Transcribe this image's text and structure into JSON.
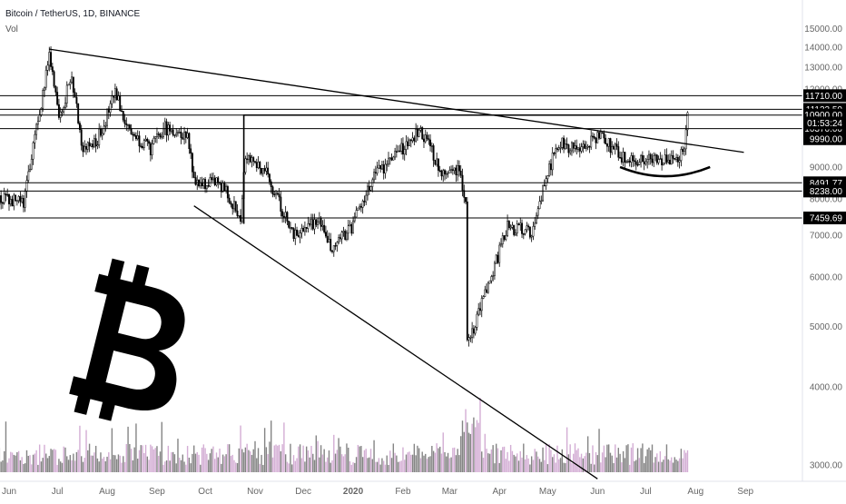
{
  "header": {
    "title": "Bitcoin / TetherUS, 1D, BINANCE",
    "volume_label": "Vol"
  },
  "colors": {
    "up": "#ffffff",
    "down": "#000000",
    "wick": "#000000",
    "volume": "#cea4cf",
    "volume_dark": "#777777",
    "line": "#000000",
    "label_bg": "#000000",
    "label_text": "#ffffff",
    "axis_text": "#666666"
  },
  "chart_data": {
    "type": "candlestick",
    "symbol": "Bitcoin / TetherUS",
    "interval": "1D",
    "exchange": "BINANCE",
    "log_scale": true,
    "ylim": [
      2800,
      15600
    ],
    "y_ticks": [
      3000,
      4000,
      5000,
      6000,
      7000,
      8000,
      9000,
      10000,
      11000,
      12000,
      13000,
      14000,
      15000
    ],
    "y_tick_labels": [
      "3000.00",
      "4000.00",
      "5000.00",
      "6000.00",
      "7000.00",
      "8000.00",
      "9000.00",
      "10000.00",
      "11000.00",
      "12000.00",
      "13000.00",
      "14000.00",
      "15000.00"
    ],
    "x_labels": [
      "Jun",
      "Jul",
      "Aug",
      "Sep",
      "Oct",
      "Nov",
      "Dec",
      "2020",
      "Feb",
      "Mar",
      "Apr",
      "May",
      "Jun",
      "Jul",
      "Aug",
      "Sep"
    ],
    "x_label_dates": [
      "2019-06-01",
      "2019-07-01",
      "2019-08-01",
      "2019-09-01",
      "2019-10-01",
      "2019-11-01",
      "2019-12-01",
      "2020-01-01",
      "2020-02-01",
      "2020-03-01",
      "2020-04-01",
      "2020-05-01",
      "2020-06-01",
      "2020-07-01",
      "2020-08-01",
      "2020-09-01"
    ],
    "price_key_points": [
      {
        "date": "2019-05-25",
        "close": 8000
      },
      {
        "date": "2019-06-10",
        "close": 7900
      },
      {
        "date": "2019-06-26",
        "close": 13500
      },
      {
        "date": "2019-07-02",
        "close": 10800
      },
      {
        "date": "2019-07-10",
        "close": 12600
      },
      {
        "date": "2019-07-17",
        "close": 9600
      },
      {
        "date": "2019-07-25",
        "close": 9800
      },
      {
        "date": "2019-08-06",
        "close": 11800
      },
      {
        "date": "2019-08-15",
        "close": 10300
      },
      {
        "date": "2019-08-28",
        "close": 9600
      },
      {
        "date": "2019-09-06",
        "close": 10400
      },
      {
        "date": "2019-09-20",
        "close": 10100
      },
      {
        "date": "2019-09-25",
        "close": 8400
      },
      {
        "date": "2019-10-10",
        "close": 8500
      },
      {
        "date": "2019-10-23",
        "close": 7500
      },
      {
        "date": "2019-10-26",
        "close": 9500
      },
      {
        "date": "2019-11-08",
        "close": 8800
      },
      {
        "date": "2019-11-25",
        "close": 7000
      },
      {
        "date": "2019-12-10",
        "close": 7400
      },
      {
        "date": "2019-12-18",
        "close": 6700
      },
      {
        "date": "2019-12-31",
        "close": 7200
      },
      {
        "date": "2020-01-14",
        "close": 8700
      },
      {
        "date": "2020-02-12",
        "close": 10300
      },
      {
        "date": "2020-02-26",
        "close": 8800
      },
      {
        "date": "2020-03-07",
        "close": 9000
      },
      {
        "date": "2020-03-11",
        "close": 7900
      },
      {
        "date": "2020-03-12",
        "close": 4800
      },
      {
        "date": "2020-03-16",
        "close": 5000
      },
      {
        "date": "2020-04-06",
        "close": 7200
      },
      {
        "date": "2020-04-22",
        "close": 7100
      },
      {
        "date": "2020-04-30",
        "close": 8700
      },
      {
        "date": "2020-05-08",
        "close": 9900
      },
      {
        "date": "2020-05-20",
        "close": 9500
      },
      {
        "date": "2020-06-02",
        "close": 10100
      },
      {
        "date": "2020-06-15",
        "close": 9400
      },
      {
        "date": "2020-06-25",
        "close": 9200
      },
      {
        "date": "2020-07-10",
        "close": 9200
      },
      {
        "date": "2020-07-20",
        "close": 9200
      },
      {
        "date": "2020-07-25",
        "close": 9600
      },
      {
        "date": "2020-07-27",
        "close": 11000
      }
    ],
    "horizontal_levels": [
      {
        "price": 11710.0,
        "label": "11710.00"
      },
      {
        "price": 11133.5,
        "label": "11133.50"
      },
      {
        "price": 10900.0,
        "label": "10900.00"
      },
      {
        "price": 10370.0,
        "label": "10370.00"
      },
      {
        "price": 8491.77,
        "label": "8491.77"
      },
      {
        "price": 8238.0,
        "label": "8238.00"
      },
      {
        "price": 7459.69,
        "label": "7459.69"
      }
    ],
    "price_labels": [
      {
        "price": 11133.5,
        "label": "11133.50"
      },
      {
        "price": 10900.0,
        "label": "10900.00"
      },
      {
        "price": 10370.0,
        "label": "10370.00"
      },
      {
        "price": 9990.0,
        "label": "9990.00"
      }
    ],
    "countdown_label": "01:53:24",
    "trendlines": [
      {
        "from": {
          "date": "2019-06-26",
          "price": 13900
        },
        "to": {
          "date": "2020-08-31",
          "price": 9500
        }
      },
      {
        "from": {
          "date": "2019-09-24",
          "price": 7800
        },
        "to": {
          "date": "2020-06-01",
          "price": 2850
        }
      }
    ],
    "range_box": {
      "from_date": "2019-10-25",
      "to_date": "2020-07-27",
      "price": 10900
    },
    "arc": {
      "from_date": "2020-06-15",
      "to_date": "2020-08-10",
      "low_price": 8700,
      "end_price": 9000
    }
  }
}
